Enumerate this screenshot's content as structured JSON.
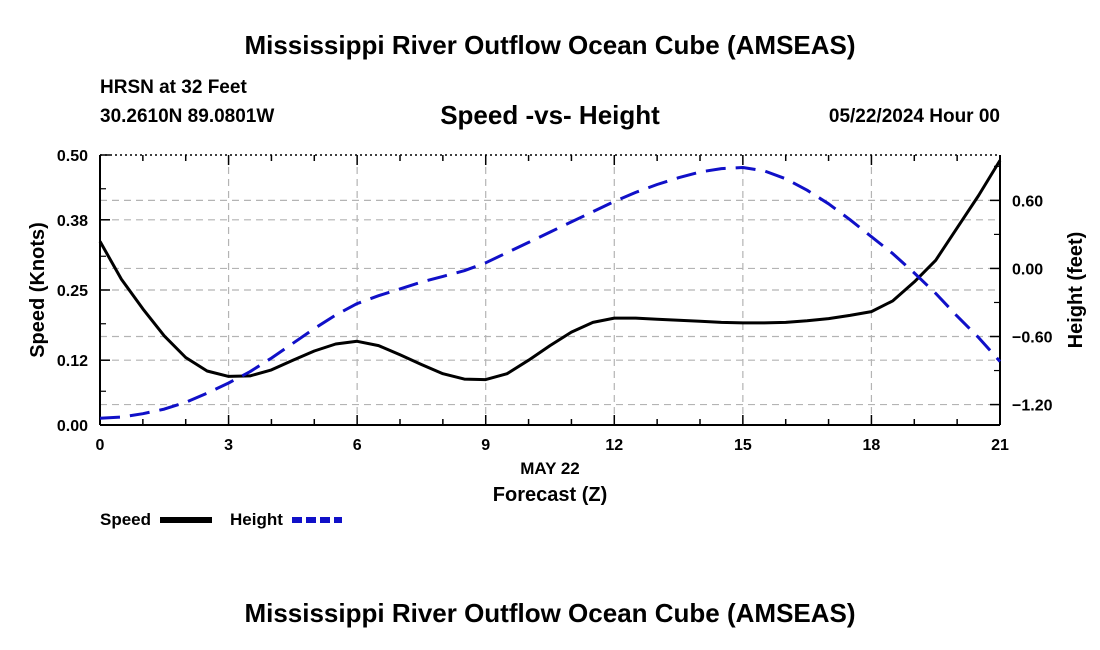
{
  "header": {
    "title": "Mississippi River Outflow Ocean Cube (AMSEAS)",
    "station": "HRSN at 32 Feet",
    "coordinates": "30.2610N  89.0801W",
    "date": "05/22/2024 Hour 00"
  },
  "footer": {
    "title": "Mississippi River Outflow Ocean Cube (AMSEAS)"
  },
  "chart_data": {
    "type": "line",
    "title": "Speed -vs- Height",
    "xlabel_date": "MAY 22",
    "xlabel": "Forecast (Z)",
    "ylabel_left": "Speed (Knots)",
    "ylabel_right": "Height (feet)",
    "xlim": [
      0,
      21
    ],
    "ylim_left": [
      0,
      0.5
    ],
    "ylim_right": [
      -1.38,
      1.0
    ],
    "x_ticks": [
      "0",
      "3",
      "6",
      "9",
      "12",
      "15",
      "18",
      "21"
    ],
    "y_ticks_left": [
      "0.00",
      "0.12",
      "0.25",
      "0.38",
      "0.50"
    ],
    "y_ticks_right": [
      "−1.20",
      "−0.60",
      "0.00",
      "0.60"
    ],
    "grid": true,
    "legend": [
      "Speed",
      "Height"
    ],
    "series": [
      {
        "name": "Speed",
        "axis": "left",
        "color": "#000000",
        "style": "solid",
        "x": [
          0,
          0.5,
          1,
          1.5,
          2,
          2.5,
          3,
          3.5,
          4,
          4.5,
          5,
          5.5,
          6,
          6.5,
          7,
          7.5,
          8,
          8.5,
          9,
          9.5,
          10,
          10.5,
          11,
          11.5,
          12,
          12.5,
          13,
          13.5,
          14,
          14.5,
          15,
          15.5,
          16,
          16.5,
          17,
          17.5,
          18,
          18.5,
          19,
          19.5,
          20,
          20.5,
          21
        ],
        "values": [
          0.34,
          0.27,
          0.215,
          0.165,
          0.125,
          0.1,
          0.09,
          0.091,
          0.102,
          0.12,
          0.137,
          0.15,
          0.155,
          0.147,
          0.13,
          0.112,
          0.095,
          0.085,
          0.084,
          0.095,
          0.12,
          0.147,
          0.172,
          0.19,
          0.198,
          0.198,
          0.196,
          0.194,
          0.192,
          0.19,
          0.189,
          0.189,
          0.19,
          0.193,
          0.197,
          0.203,
          0.21,
          0.23,
          0.265,
          0.305,
          0.365,
          0.425,
          0.49
        ]
      },
      {
        "name": "Height",
        "axis": "right",
        "color": "#1010c8",
        "style": "dashed",
        "x": [
          0,
          0.5,
          1,
          1.5,
          2,
          2.5,
          3,
          3.5,
          4,
          4.5,
          5,
          5.5,
          6,
          6.5,
          7,
          7.5,
          8,
          8.5,
          9,
          9.5,
          10,
          10.5,
          11,
          11.5,
          12,
          12.5,
          13,
          13.5,
          14,
          14.5,
          15,
          15.5,
          16,
          16.5,
          17,
          17.5,
          18,
          18.5,
          19,
          19.5,
          20,
          20.5,
          21
        ],
        "values": [
          -1.32,
          -1.31,
          -1.28,
          -1.24,
          -1.18,
          -1.1,
          -1.01,
          -0.91,
          -0.79,
          -0.66,
          -0.53,
          -0.41,
          -0.31,
          -0.24,
          -0.18,
          -0.12,
          -0.07,
          -0.02,
          0.05,
          0.14,
          0.23,
          0.32,
          0.41,
          0.5,
          0.59,
          0.67,
          0.74,
          0.8,
          0.85,
          0.88,
          0.89,
          0.86,
          0.79,
          0.69,
          0.57,
          0.43,
          0.28,
          0.13,
          -0.04,
          -0.22,
          -0.42,
          -0.61,
          -0.82
        ]
      }
    ]
  }
}
